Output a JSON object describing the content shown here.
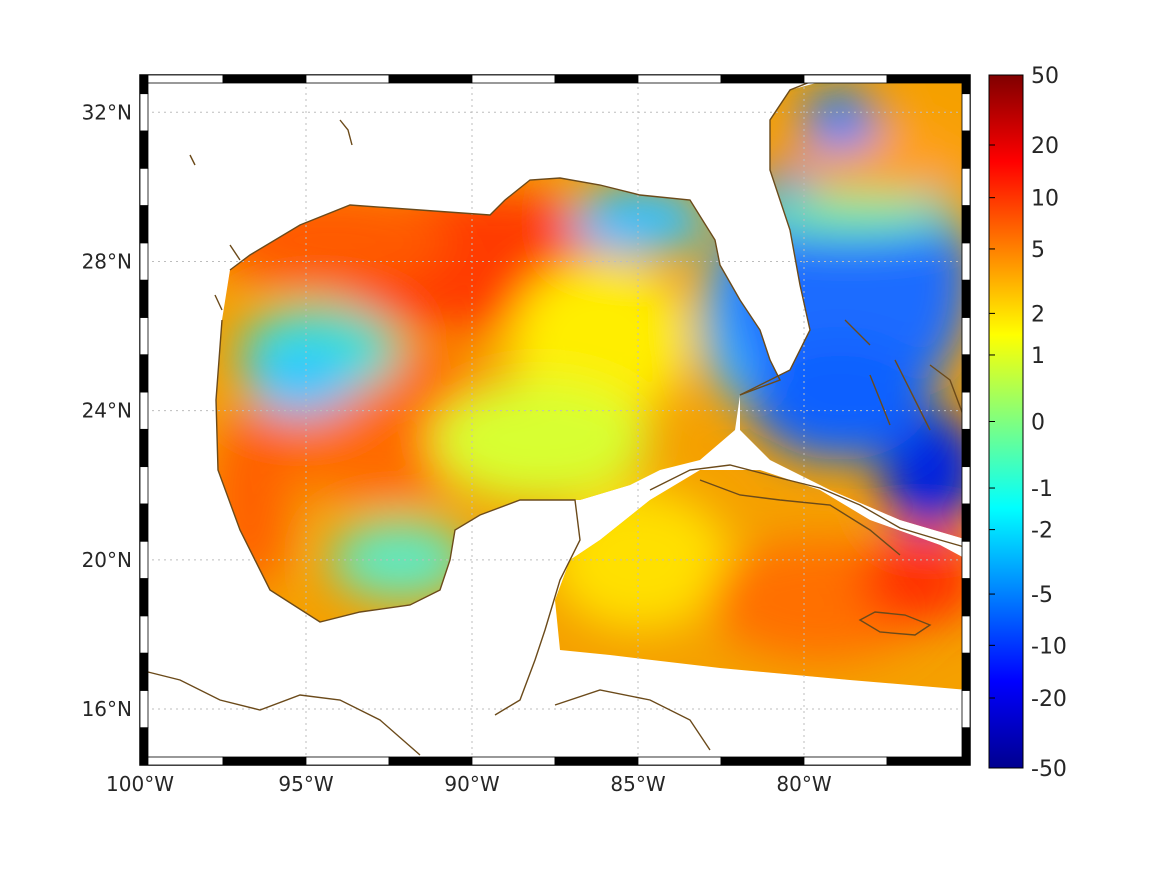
{
  "map": {
    "lon_range": [
      -100,
      -75
    ],
    "lat_range": [
      14.5,
      33
    ],
    "x_ticks": [
      {
        "value": -100,
        "label": "100°W"
      },
      {
        "value": -95,
        "label": "95°W"
      },
      {
        "value": -90,
        "label": "90°W"
      },
      {
        "value": -85,
        "label": "85°W"
      },
      {
        "value": -80,
        "label": "80°W"
      }
    ],
    "y_ticks": [
      {
        "value": 32,
        "label": "32°N"
      },
      {
        "value": 28,
        "label": "28°N"
      },
      {
        "value": 24,
        "label": "24°N"
      },
      {
        "value": 20,
        "label": "20°N"
      },
      {
        "value": 16,
        "label": "16°N"
      }
    ],
    "grid": "dotted",
    "coastline_color": "#6b4a1a"
  },
  "colorbar": {
    "colormap": "jet",
    "labels": [
      "50",
      "20",
      "10",
      "5",
      "2",
      "1",
      "0",
      "-1",
      "-2",
      "-5",
      "-10",
      "-20",
      "-50"
    ]
  }
}
